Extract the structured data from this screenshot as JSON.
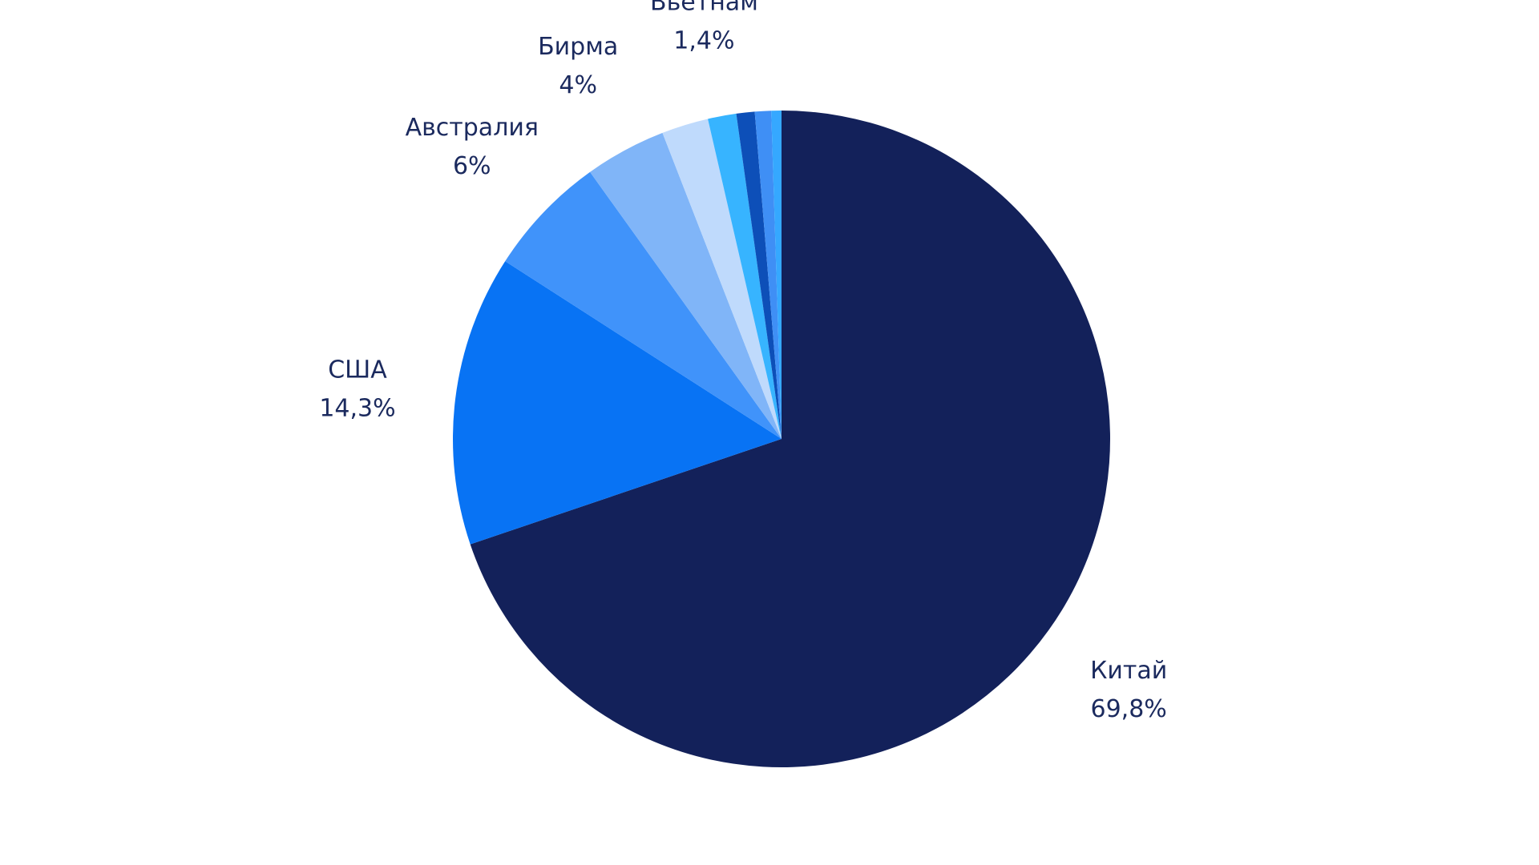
{
  "chart_data": {
    "type": "pie",
    "categories": [
      "Китай",
      "США",
      "Австралия",
      "Бирма",
      null,
      "Вьетнам",
      null,
      null,
      null
    ],
    "values": [
      69.8,
      14.3,
      6,
      4,
      2.3,
      1.4,
      0.9,
      0.8,
      0.5
    ],
    "value_labels": [
      "69,8%",
      "14,3%",
      "6%",
      "4%",
      null,
      "1,4%",
      null,
      null,
      null
    ],
    "colors": [
      "#13215a",
      "#0873f4",
      "#4093fa",
      "#80b5f8",
      "#bfdafc",
      "#37b4ff",
      "#0d4fb8",
      "#3f8ff5",
      "#35a8ff"
    ]
  }
}
